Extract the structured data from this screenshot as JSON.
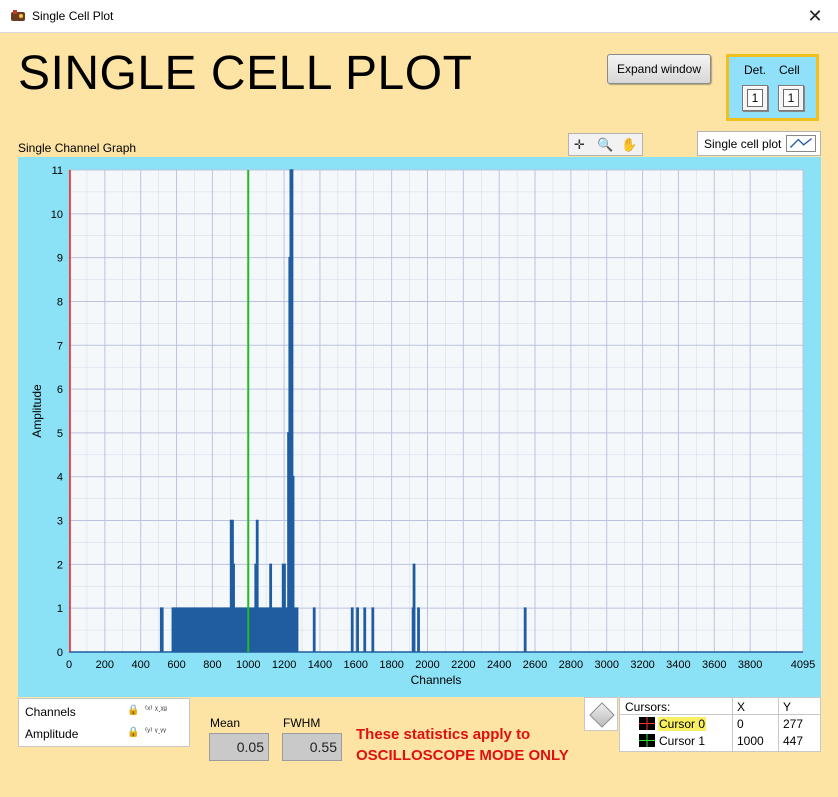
{
  "window": {
    "title": "Single Cell Plot",
    "close_glyph": "✕"
  },
  "header": {
    "title": "SINGLE CELL PLOT",
    "expand_button_label": "Expand window",
    "det_label": "Det.",
    "cell_label": "Cell",
    "det_value": "1",
    "cell_value": "1"
  },
  "graph": {
    "label": "Single Channel Graph",
    "legend_label": "Single cell plot",
    "palette_icons": [
      "crosshair-icon",
      "zoom-icon",
      "pan-hand-icon"
    ],
    "colors": {
      "background": "#f5f8fb",
      "grid": "#bcc3de",
      "series": "#1f5da0",
      "cursor0": "#e02020",
      "cursor1": "#22bb22",
      "frame": "#8be1f6"
    }
  },
  "chart_data": {
    "type": "line",
    "title": "",
    "xlabel": "Channels",
    "ylabel": "Amplitude",
    "xlim": [
      0,
      4095
    ],
    "ylim": [
      0,
      11
    ],
    "xticks": [
      0,
      200,
      400,
      600,
      800,
      1000,
      1200,
      1400,
      1600,
      1800,
      2000,
      2200,
      2400,
      2600,
      2800,
      3000,
      3200,
      3400,
      3600,
      3800,
      4095
    ],
    "yticks": [
      0,
      1,
      2,
      3,
      4,
      5,
      6,
      7,
      8,
      9,
      10,
      11
    ],
    "grid": true,
    "legend_position": "top-right",
    "series": [
      {
        "name": "Single cell plot",
        "spikes": [
          [
            515,
            1
          ],
          [
            520,
            1
          ],
          [
            580,
            1
          ],
          [
            590,
            1
          ],
          [
            598,
            1
          ],
          [
            605,
            1
          ],
          [
            618,
            1
          ],
          [
            628,
            1
          ],
          [
            640,
            1
          ],
          [
            650,
            1
          ],
          [
            660,
            1
          ],
          [
            668,
            1
          ],
          [
            680,
            1
          ],
          [
            690,
            1
          ],
          [
            700,
            1
          ],
          [
            712,
            1
          ],
          [
            722,
            1
          ],
          [
            732,
            1
          ],
          [
            745,
            1
          ],
          [
            755,
            1
          ],
          [
            765,
            1
          ],
          [
            778,
            1
          ],
          [
            790,
            1
          ],
          [
            800,
            1
          ],
          [
            812,
            1
          ],
          [
            822,
            1
          ],
          [
            835,
            1
          ],
          [
            848,
            1
          ],
          [
            858,
            1
          ],
          [
            870,
            1
          ],
          [
            878,
            1
          ],
          [
            885,
            1
          ],
          [
            895,
            1
          ],
          [
            905,
            3
          ],
          [
            912,
            3
          ],
          [
            918,
            2
          ],
          [
            925,
            1
          ],
          [
            935,
            1
          ],
          [
            945,
            1
          ],
          [
            958,
            1
          ],
          [
            968,
            1
          ],
          [
            980,
            1
          ],
          [
            992,
            1
          ],
          [
            1005,
            1
          ],
          [
            1015,
            1
          ],
          [
            1025,
            1
          ],
          [
            1035,
            1
          ],
          [
            1042,
            2
          ],
          [
            1050,
            3
          ],
          [
            1058,
            1
          ],
          [
            1068,
            1
          ],
          [
            1080,
            1
          ],
          [
            1090,
            1
          ],
          [
            1100,
            1
          ],
          [
            1110,
            1
          ],
          [
            1118,
            1
          ],
          [
            1125,
            2
          ],
          [
            1132,
            1
          ],
          [
            1140,
            1
          ],
          [
            1150,
            1
          ],
          [
            1160,
            1
          ],
          [
            1168,
            1
          ],
          [
            1175,
            1
          ],
          [
            1185,
            1
          ],
          [
            1195,
            2
          ],
          [
            1202,
            2
          ],
          [
            1210,
            1
          ],
          [
            1218,
            1
          ],
          [
            1225,
            5
          ],
          [
            1232,
            9
          ],
          [
            1238,
            11
          ],
          [
            1244,
            11
          ],
          [
            1250,
            4
          ],
          [
            1256,
            1
          ],
          [
            1263,
            1
          ],
          [
            1272,
            1
          ],
          [
            1368,
            1
          ],
          [
            1580,
            1
          ],
          [
            1610,
            1
          ],
          [
            1650,
            1
          ],
          [
            1695,
            1
          ],
          [
            1920,
            1
          ],
          [
            1925,
            2
          ],
          [
            1950,
            1
          ],
          [
            2545,
            1
          ]
        ]
      }
    ],
    "cursors": [
      {
        "name": "Cursor 0",
        "x": 0,
        "y": 277
      },
      {
        "name": "Cursor 1",
        "x": 1000,
        "y": 447
      }
    ]
  },
  "scale_legend": {
    "x_name": "Channels",
    "y_name": "Amplitude",
    "x_format_glyph": "⁽ˣ⁾ ᵡ.ᵡᵍ",
    "y_format_glyph": "⁽ʸ⁾ ᵞ.ᵞᵞ"
  },
  "stats": {
    "mean_label": "Mean",
    "mean_value": "0.05",
    "fwhm_label": "FWHM",
    "fwhm_value": "0.55",
    "notice_line1": "These statistics apply to",
    "notice_line2": "OSCILLOSCOPE MODE ONLY"
  },
  "cursor_table": {
    "header_name": "Cursors:",
    "header_x": "X",
    "header_y": "Y",
    "rows": [
      {
        "name": "Cursor 0",
        "x": "0",
        "y": "277"
      },
      {
        "name": "Cursor 1",
        "x": "1000",
        "y": "447"
      }
    ]
  }
}
